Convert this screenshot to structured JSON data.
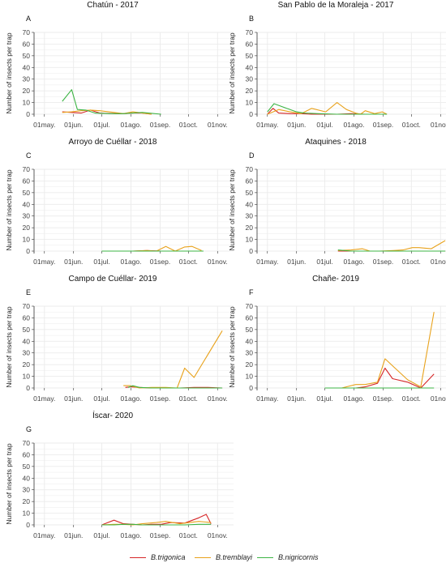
{
  "x_ticks": [
    "01may.",
    "01jun.",
    "01jul.",
    "01ago.",
    "01sep.",
    "01oct.",
    "01nov."
  ],
  "y_ticks": [
    0,
    10,
    20,
    30,
    40,
    50,
    60,
    70
  ],
  "ylabel": "Number of insects per trap",
  "colors": {
    "trigonica": "#d62728",
    "tremblayi": "#e8a21c",
    "nigricornis": "#3cb444",
    "grid": "#ebebeb",
    "axis": "#333333"
  },
  "legend": [
    {
      "key": "trigonica",
      "label": "B.trigonica"
    },
    {
      "key": "tremblayi",
      "label": "B.tremblayi"
    },
    {
      "key": "nigricornis",
      "label": "B.nigricornis"
    }
  ],
  "chart_data": [
    {
      "type": "line",
      "letter": "A",
      "title": "Chatún - 2017",
      "xlabel": "",
      "ylabel": "Number of insects per trap",
      "x_axis": "date (day of year)",
      "xlim": [
        "01may.",
        "01nov."
      ],
      "ylim": [
        0,
        70
      ],
      "series": [
        {
          "key": "trigonica",
          "name": "B.trigonica",
          "x": [
            140,
            150,
            160,
            170,
            180,
            195,
            205,
            215,
            225,
            235
          ],
          "y": [
            2,
            1.5,
            1,
            3.5,
            1,
            0.5,
            0.5,
            1,
            1,
            0
          ]
        },
        {
          "key": "tremblayi",
          "name": "B.tremblayi",
          "x": [
            140,
            150,
            160,
            170,
            180,
            195,
            205,
            215,
            225,
            235
          ],
          "y": [
            1.5,
            2,
            3,
            3.5,
            3,
            1.5,
            0.5,
            2,
            1,
            0
          ]
        },
        {
          "key": "nigricornis",
          "name": "B.nigricornis",
          "x": [
            140,
            150,
            156,
            165,
            175,
            190,
            205,
            215,
            225,
            245
          ],
          "y": [
            11,
            21,
            4,
            3.5,
            1,
            0.5,
            0.5,
            1,
            1.5,
            0
          ]
        }
      ]
    },
    {
      "type": "line",
      "letter": "B",
      "title": "San Pablo de la Moraleja - 2017",
      "xlabel": "",
      "ylabel": "Number of insects per trap",
      "x_axis": "date (day of year)",
      "xlim": [
        "01may.",
        "01nov."
      ],
      "ylim": [
        0,
        70
      ],
      "series": [
        {
          "key": "trigonica",
          "name": "B.trigonica",
          "x": [
            121,
            127,
            133,
            145,
            157,
            168,
            180,
            195,
            210,
            225,
            238,
            248
          ],
          "y": [
            0,
            5,
            1,
            0.5,
            0.5,
            0,
            0,
            0,
            0.5,
            0,
            0,
            0
          ]
        },
        {
          "key": "tremblayi",
          "name": "B.tremblayi",
          "x": [
            121,
            133,
            145,
            157,
            168,
            183,
            195,
            205,
            215,
            220,
            225,
            235,
            243,
            248
          ],
          "y": [
            0,
            4,
            2,
            0.5,
            5,
            2,
            10,
            4,
            1,
            0,
            3,
            0.5,
            2,
            0
          ]
        },
        {
          "key": "nigricornis",
          "name": "B.nigricornis",
          "x": [
            121,
            128,
            140,
            152,
            160,
            175,
            195,
            215,
            230,
            248
          ],
          "y": [
            2,
            9,
            5.5,
            2,
            1,
            0.5,
            0,
            0,
            0,
            0
          ]
        }
      ]
    },
    {
      "type": "line",
      "letter": "C",
      "title": "Arroyo de Cuéllar - 2018",
      "xlabel": "",
      "ylabel": "Number of insects per trap",
      "x_axis": "date (day of year)",
      "xlim": [
        "01may.",
        "01nov."
      ],
      "ylim": [
        0,
        70
      ],
      "series": [
        {
          "key": "trigonica",
          "name": "B.trigonica",
          "x": [
            182,
            215,
            230,
            245,
            260,
            275,
            285
          ],
          "y": [
            0,
            0,
            0.5,
            0,
            0,
            0,
            0
          ]
        },
        {
          "key": "tremblayi",
          "name": "B.tremblayi",
          "x": [
            182,
            215,
            230,
            240,
            250,
            260,
            270,
            278,
            288
          ],
          "y": [
            0,
            0,
            0.5,
            0,
            4,
            0,
            3.5,
            4,
            0.5
          ]
        },
        {
          "key": "nigricornis",
          "name": "B.nigricornis",
          "x": [
            182,
            215,
            230,
            245,
            260,
            275,
            290
          ],
          "y": [
            0,
            0,
            0,
            0,
            0,
            0,
            0
          ]
        }
      ]
    },
    {
      "type": "line",
      "letter": "D",
      "title": "Ataquines - 2018",
      "xlabel": "",
      "ylabel": "Number of insects per trap",
      "x_axis": "date (day of year)",
      "xlim": [
        "01may.",
        "01nov."
      ],
      "ylim": [
        0,
        70
      ],
      "series": [
        {
          "key": "trigonica",
          "name": "B.trigonica",
          "x": [
            196,
            210,
            225,
            240,
            255,
            270,
            290,
            310
          ],
          "y": [
            0,
            0,
            0,
            0,
            0,
            0,
            0,
            0
          ]
        },
        {
          "key": "tremblayi",
          "name": "B.tremblayi",
          "x": [
            196,
            210,
            222,
            230,
            240,
            255,
            265,
            275,
            282,
            295,
            310
          ],
          "y": [
            0.5,
            1,
            2,
            0,
            0,
            0.5,
            1,
            3,
            3,
            2,
            9
          ]
        },
        {
          "key": "nigricornis",
          "name": "B.nigricornis",
          "x": [
            196,
            210,
            225,
            240,
            255,
            270,
            290,
            310
          ],
          "y": [
            1,
            0,
            0,
            0,
            0,
            0,
            0,
            0
          ]
        }
      ]
    },
    {
      "type": "line",
      "letter": "E",
      "title": "Campo de Cuéllar- 2019",
      "xlabel": "",
      "ylabel": "Number of insects per trap",
      "x_axis": "date (day of year)",
      "xlim": [
        "01may.",
        "01nov."
      ],
      "ylim": [
        0,
        70
      ],
      "series": [
        {
          "key": "trigonica",
          "name": "B.trigonica",
          "x": [
            207,
            213,
            222,
            235,
            250,
            265,
            280,
            295,
            310
          ],
          "y": [
            0.5,
            1,
            0.5,
            0,
            0,
            0,
            0.5,
            0.5,
            0
          ]
        },
        {
          "key": "tremblayi",
          "name": "B.tremblayi",
          "x": [
            205,
            212,
            222,
            235,
            250,
            262,
            270,
            280,
            310
          ],
          "y": [
            2,
            2,
            0,
            0.5,
            0.5,
            0,
            17,
            9,
            49
          ]
        },
        {
          "key": "nigricornis",
          "name": "B.nigricornis",
          "x": [
            210,
            215,
            222,
            235,
            250,
            265,
            280,
            295,
            310
          ],
          "y": [
            0.5,
            2,
            0.5,
            0,
            0,
            0,
            0,
            0,
            0
          ]
        }
      ]
    },
    {
      "type": "line",
      "letter": "F",
      "title": "Chañe- 2019",
      "xlabel": "",
      "ylabel": "Number of insects per trap",
      "x_axis": "date (day of year)",
      "xlim": [
        "01may.",
        "01nov."
      ],
      "ylim": [
        0,
        70
      ],
      "series": [
        {
          "key": "trigonica",
          "name": "B.trigonica",
          "x": [
            182,
            200,
            215,
            225,
            238,
            246,
            254,
            270,
            284,
            298
          ],
          "y": [
            0,
            0,
            0,
            1,
            4,
            17,
            8,
            5,
            0,
            12
          ]
        },
        {
          "key": "tremblayi",
          "name": "B.tremblayi",
          "x": [
            182,
            200,
            215,
            225,
            238,
            246,
            254,
            270,
            284,
            298
          ],
          "y": [
            0,
            0,
            3,
            3,
            5,
            25,
            19,
            7,
            1,
            65
          ]
        },
        {
          "key": "nigricornis",
          "name": "B.nigricornis",
          "x": [
            182,
            200,
            215,
            225,
            238,
            246,
            254,
            270,
            284,
            298
          ],
          "y": [
            0,
            0,
            0,
            0,
            0,
            0,
            0,
            0,
            0,
            0
          ]
        }
      ]
    },
    {
      "type": "line",
      "letter": "G",
      "title": "Íscar- 2020",
      "xlabel": "",
      "ylabel": "Number of insects per trap",
      "x_axis": "date (day of year)",
      "xlim": [
        "01may.",
        "01nov."
      ],
      "ylim": [
        0,
        70
      ],
      "series": [
        {
          "key": "trigonica",
          "name": "B.trigonica",
          "x": [
            182,
            195,
            205,
            215,
            225,
            235,
            245,
            255,
            270,
            285,
            293,
            298
          ],
          "y": [
            0,
            4,
            1,
            0.5,
            0,
            0.5,
            0.5,
            2,
            1.5,
            6,
            9,
            1
          ]
        },
        {
          "key": "tremblayi",
          "name": "B.tremblayi",
          "x": [
            182,
            195,
            205,
            215,
            225,
            240,
            250,
            265,
            285,
            298
          ],
          "y": [
            0,
            0.5,
            0.5,
            0,
            1,
            2,
            3,
            1,
            3,
            2
          ]
        },
        {
          "key": "nigricornis",
          "name": "B.nigricornis",
          "x": [
            182,
            195,
            205,
            215,
            225,
            240,
            255,
            270,
            285,
            298
          ],
          "y": [
            0,
            0,
            0.5,
            0.5,
            0,
            0,
            0,
            0,
            0.5,
            0.5
          ]
        }
      ]
    }
  ]
}
